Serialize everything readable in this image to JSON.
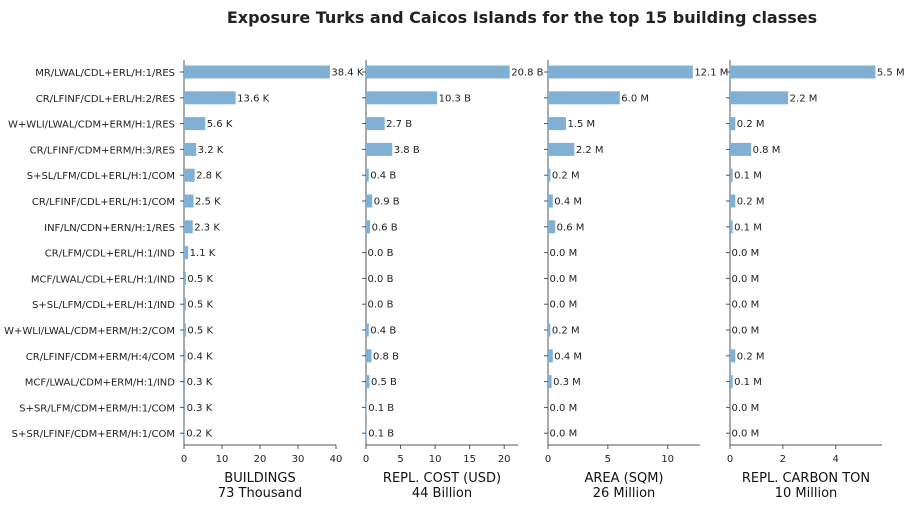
{
  "chart_data": {
    "type": "bar",
    "orientation": "horizontal",
    "title": "Exposure Turks and Caicos Islands for the top 15 building classes",
    "categories": [
      "MR/LWAL/CDL+ERL/H:1/RES",
      "CR/LFINF/CDL+ERL/H:2/RES",
      "W+WLI/LWAL/CDM+ERM/H:1/RES",
      "CR/LFINF/CDM+ERM/H:3/RES",
      "S+SL/LFM/CDL+ERL/H:1/COM",
      "CR/LFINF/CDL+ERL/H:1/COM",
      "INF/LN/CDN+ERN/H:1/RES",
      "CR/LFM/CDL+ERL/H:1/IND",
      "MCF/LWAL/CDL+ERL/H:1/IND",
      "S+SL/LFM/CDL+ERL/H:1/IND",
      "W+WLI/LWAL/CDM+ERM/H:2/COM",
      "CR/LFINF/CDM+ERM/H:4/COM",
      "MCF/LWAL/CDM+ERM/H:1/IND",
      "S+SR/LFM/CDM+ERM/H:1/COM",
      "S+SR/LFINF/CDM+ERM/H:1/COM"
    ],
    "panels": [
      {
        "name": "BUILDINGS",
        "xlabel": "BUILDINGS",
        "total": "73 Thousand",
        "xlim": [
          0,
          40
        ],
        "ticks": [
          0,
          10,
          20,
          30,
          40
        ],
        "values": [
          38.4,
          13.6,
          5.6,
          3.2,
          2.8,
          2.5,
          2.3,
          1.1,
          0.5,
          0.5,
          0.5,
          0.4,
          0.3,
          0.3,
          0.2
        ],
        "labels": [
          "38.4 K",
          "13.6 K",
          "5.6 K",
          "3.2 K",
          "2.8 K",
          "2.5 K",
          "2.3 K",
          "1.1 K",
          "0.5 K",
          "0.5 K",
          "0.5 K",
          "0.4 K",
          "0.3 K",
          "0.3 K",
          "0.2 K"
        ]
      },
      {
        "name": "REPL. COST (USD)",
        "xlabel": "REPL. COST (USD)",
        "total": "44 Billion",
        "xlim": [
          0,
          22
        ],
        "ticks": [
          0,
          5,
          10,
          15,
          20
        ],
        "values": [
          20.8,
          10.3,
          2.7,
          3.8,
          0.4,
          0.9,
          0.6,
          0.0,
          0.0,
          0.0,
          0.4,
          0.8,
          0.5,
          0.1,
          0.1
        ],
        "labels": [
          "20.8 B",
          "10.3 B",
          "2.7 B",
          "3.8 B",
          "0.4 B",
          "0.9 B",
          "0.6 B",
          "0.0 B",
          "0.0 B",
          "0.0 B",
          "0.4 B",
          "0.8 B",
          "0.5 B",
          "0.1 B",
          "0.1 B"
        ]
      },
      {
        "name": "AREA (SQM)",
        "xlabel": "AREA (SQM)",
        "total": "26 Million",
        "xlim": [
          0,
          12.7
        ],
        "ticks": [
          0,
          5,
          10
        ],
        "values": [
          12.1,
          6.0,
          1.5,
          2.2,
          0.2,
          0.4,
          0.6,
          0.0,
          0.0,
          0.0,
          0.2,
          0.4,
          0.3,
          0.0,
          0.0
        ],
        "labels": [
          "12.1 M",
          "6.0 M",
          "1.5 M",
          "2.2 M",
          "0.2 M",
          "0.4 M",
          "0.6 M",
          "0.0 M",
          "0.0 M",
          "0.0 M",
          "0.2 M",
          "0.4 M",
          "0.3 M",
          "0.0 M",
          "0.0 M"
        ]
      },
      {
        "name": "REPL. CARBON TON",
        "xlabel": "REPL. CARBON TON",
        "total": "10 Million",
        "xlim": [
          0,
          5.75
        ],
        "ticks": [
          0,
          2,
          4
        ],
        "values": [
          5.5,
          2.2,
          0.2,
          0.8,
          0.1,
          0.2,
          0.1,
          0.0,
          0.0,
          0.0,
          0.0,
          0.2,
          0.1,
          0.0,
          0.0
        ],
        "labels": [
          "5.5 M",
          "2.2 M",
          "0.2 M",
          "0.8 M",
          "0.1 M",
          "0.2 M",
          "0.1 M",
          "0.0 M",
          "0.0 M",
          "0.0 M",
          "0.0 M",
          "0.2 M",
          "0.1 M",
          "0.0 M",
          "0.0 M"
        ]
      }
    ],
    "grid": false,
    "colors": {
      "bar": "#80b0d3",
      "axis": "#555555",
      "text": "#222222"
    }
  }
}
